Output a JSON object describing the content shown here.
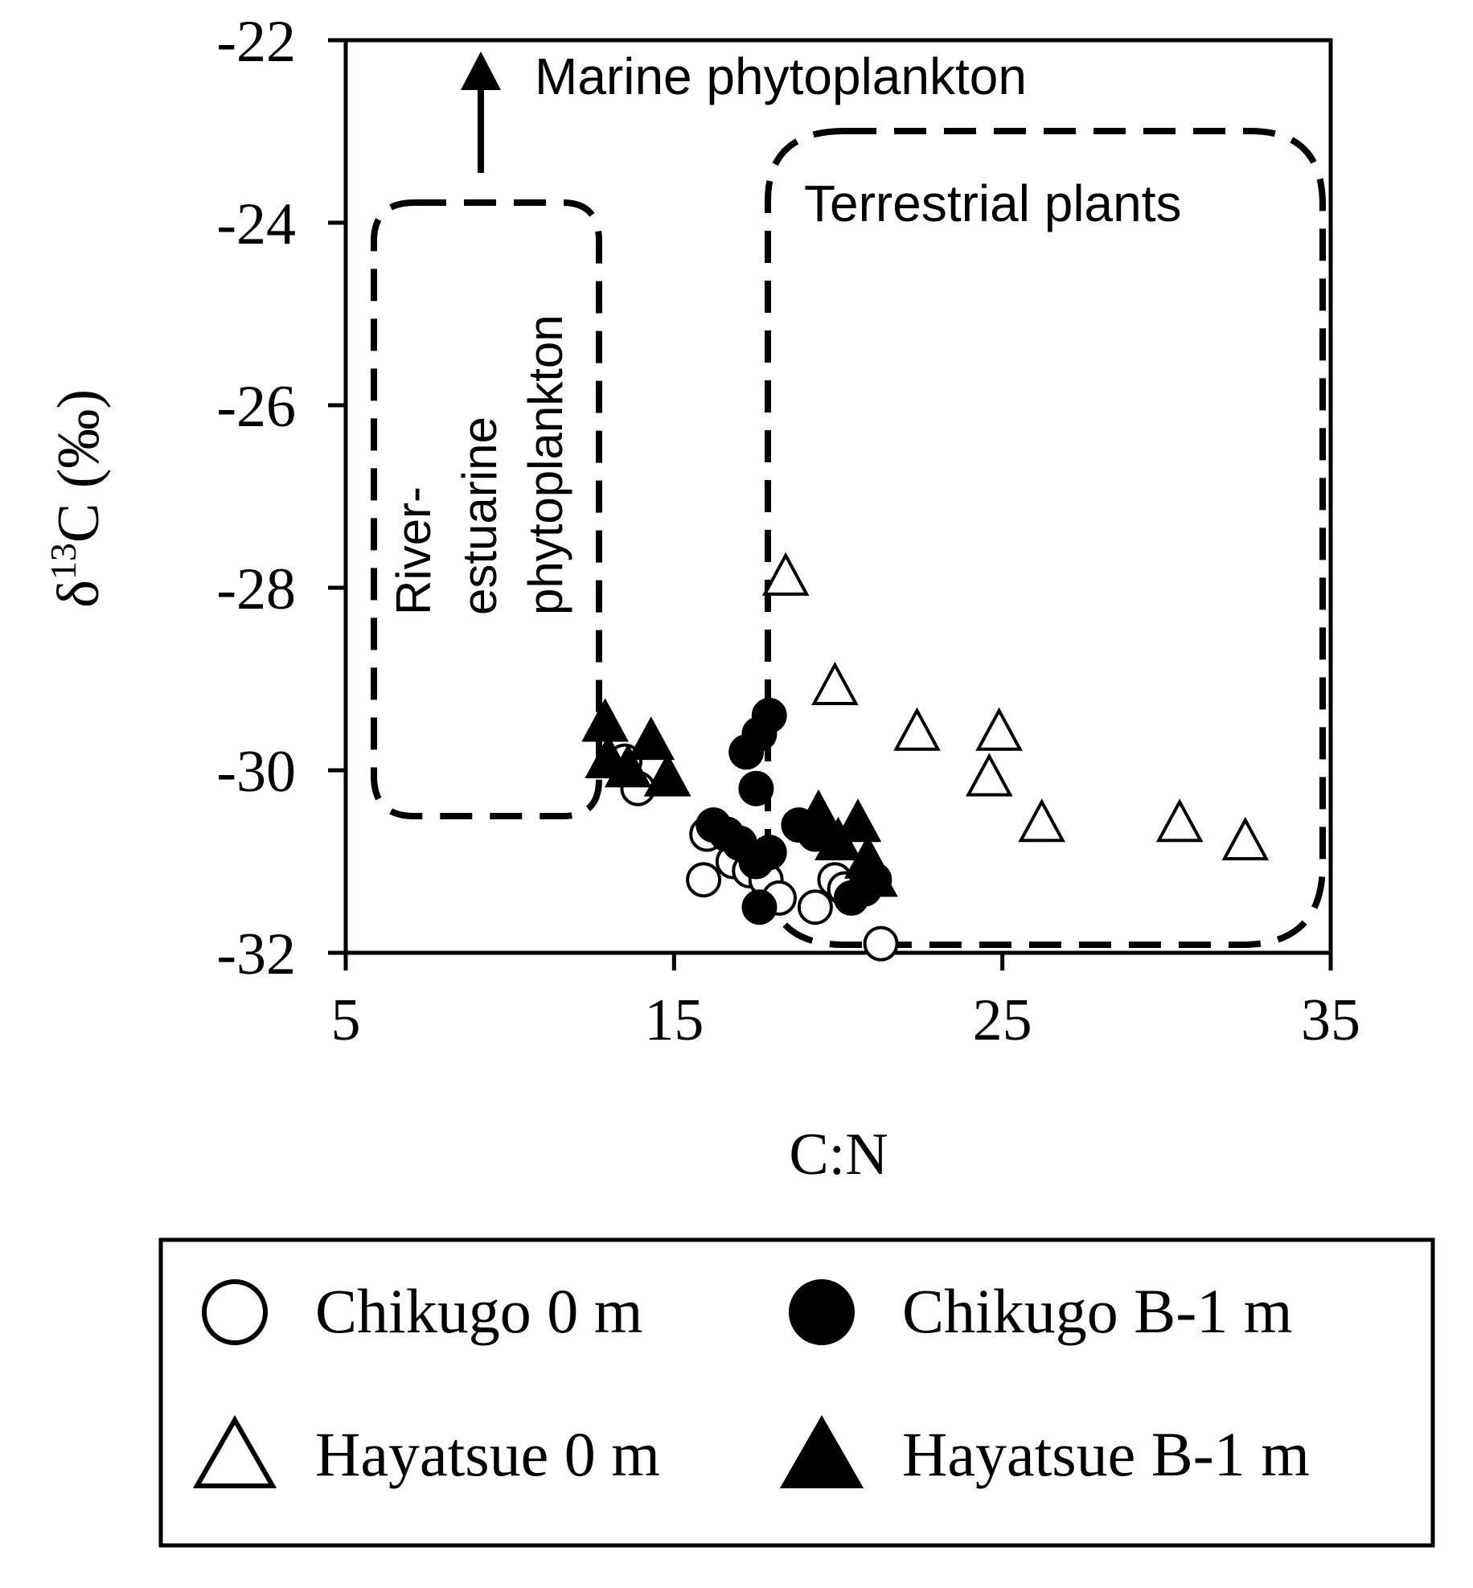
{
  "chart_data": {
    "type": "scatter",
    "xlabel": "C:N",
    "ylabel_main": "δ",
    "ylabel_sup": "13",
    "ylabel_rest": "C (‰)",
    "xlim": [
      5,
      35
    ],
    "ylim": [
      -32,
      -22
    ],
    "xticks": [
      5,
      15,
      25,
      35
    ],
    "yticks": [
      -22,
      -24,
      -26,
      -28,
      -30,
      -32
    ],
    "grid": false,
    "legend_position": "bottom",
    "series": [
      {
        "name": "Chikugo 0 m",
        "marker": "circle-open",
        "points": [
          [
            13.5,
            -29.9
          ],
          [
            13.9,
            -30.2
          ],
          [
            16.0,
            -30.7
          ],
          [
            15.9,
            -31.2
          ],
          [
            16.8,
            -31.0
          ],
          [
            17.3,
            -31.1
          ],
          [
            17.8,
            -31.2
          ],
          [
            18.2,
            -31.4
          ],
          [
            19.3,
            -31.5
          ],
          [
            19.9,
            -31.2
          ],
          [
            20.2,
            -31.3
          ],
          [
            21.3,
            -31.9
          ]
        ]
      },
      {
        "name": "Chikugo B-1 m",
        "marker": "circle-filled",
        "points": [
          [
            16.2,
            -30.6
          ],
          [
            16.6,
            -30.7
          ],
          [
            17.0,
            -30.8
          ],
          [
            17.2,
            -29.8
          ],
          [
            17.5,
            -30.2
          ],
          [
            17.6,
            -29.6
          ],
          [
            17.9,
            -29.4
          ],
          [
            17.5,
            -31.0
          ],
          [
            17.9,
            -30.9
          ],
          [
            17.6,
            -31.5
          ],
          [
            18.8,
            -30.6
          ],
          [
            19.3,
            -30.7
          ],
          [
            20.4,
            -31.4
          ],
          [
            20.8,
            -31.3
          ],
          [
            21.1,
            -31.2
          ]
        ]
      },
      {
        "name": "Hayatsue 0 m",
        "marker": "triangle-open",
        "points": [
          [
            18.4,
            -27.9
          ],
          [
            19.9,
            -29.1
          ],
          [
            22.4,
            -29.6
          ],
          [
            24.9,
            -29.6
          ],
          [
            24.6,
            -30.1
          ],
          [
            26.2,
            -30.6
          ],
          [
            30.4,
            -30.6
          ],
          [
            32.4,
            -30.8
          ]
        ]
      },
      {
        "name": "Hayatsue B-1 m",
        "marker": "triangle-filled",
        "points": [
          [
            12.9,
            -29.5
          ],
          [
            13.0,
            -29.9
          ],
          [
            13.6,
            -30.0
          ],
          [
            14.3,
            -29.7
          ],
          [
            14.8,
            -30.1
          ],
          [
            19.4,
            -30.5
          ],
          [
            20.0,
            -30.8
          ],
          [
            20.6,
            -30.6
          ],
          [
            20.9,
            -31.0
          ],
          [
            21.1,
            -31.2
          ]
        ]
      }
    ],
    "annotations": {
      "marine": "Marine phytoplankton",
      "terrestrial": "Terrestrial plants",
      "river_line1": "River-",
      "river_line2": "estuarine",
      "river_line3": "phytoplankton"
    }
  }
}
